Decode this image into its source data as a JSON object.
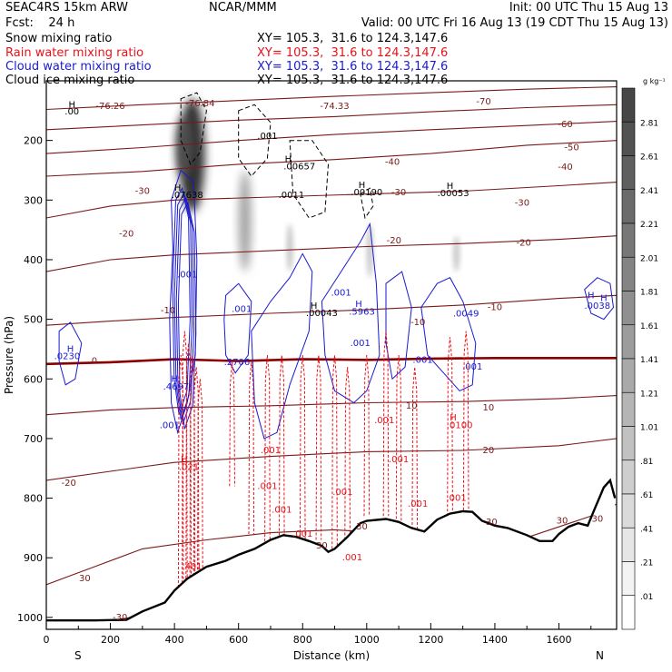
{
  "header": {
    "line1_left": "SEAC4RS 15km ARW",
    "line1_center": "NCAR/MMM",
    "line1_right": "Init: 00 UTC Thu 15 Aug 13",
    "line2_left": "Fcst:    24 h",
    "line2_right": "Valid: 00 UTC Fri 16 Aug 13 (19 CDT Thu 15 Aug 13)",
    "fields": [
      {
        "name": "Snow mixing ratio",
        "xy": "XY= 105.3,  31.6 to 124.3,147.6",
        "color": "#000000"
      },
      {
        "name": "Rain water mixing ratio",
        "xy": "XY= 105.3,  31.6 to 124.3,147.6",
        "color": "#e8121a"
      },
      {
        "name": "Cloud water mixing ratio",
        "xy": "XY= 105.3,  31.6 to 124.3,147.6",
        "color": "#1a1ad0"
      },
      {
        "name": "Cloud ice mixing ratio",
        "xy": "XY= 105.3,  31.6 to 124.3,147.6",
        "color": "#000000"
      }
    ]
  },
  "chart_data": {
    "type": "cross-section",
    "xlabel": "Distance (km)",
    "ylabel": "Pressure (hPa)",
    "xlim": [
      0,
      1780
    ],
    "ylim": [
      1020,
      100
    ],
    "x_ticks": [
      "0",
      "200",
      "400",
      "600",
      "800",
      "1000",
      "1200",
      "1400",
      "1600"
    ],
    "y_ticks": [
      "200",
      "300",
      "400",
      "500",
      "600",
      "700",
      "800",
      "900",
      "1000"
    ],
    "end_labels": {
      "left": "S",
      "right": "N"
    },
    "colorbar": {
      "unit": "g kg⁻¹",
      "labels": [
        "2.81",
        "2.61",
        "2.41",
        "2.21",
        "2.01",
        "1.81",
        "1.61",
        "1.41",
        "1.21",
        "1.01",
        ".81",
        ".61",
        ".41",
        ".21",
        ".01"
      ]
    },
    "temperature_contours": {
      "color": "#7a1a1a",
      "zero_color": "#8a0000",
      "levels": [
        {
          "value": 30,
          "points": [
            [
              0,
              1008
            ],
            [
              200,
              1005
            ],
            [
              400,
              990
            ],
            [
              700,
              960
            ]
          ]
        },
        {
          "value": 30,
          "points": [
            [
              0,
              945
            ],
            [
              150,
              915
            ],
            [
              300,
              885
            ],
            [
              500,
              870
            ],
            [
              700,
              858
            ],
            [
              900,
              853
            ],
            [
              1100,
              860
            ],
            [
              1300,
              872
            ],
            [
              1500,
              866
            ],
            [
              1700,
              830
            ],
            [
              1780,
              810
            ]
          ]
        },
        {
          "value": 20,
          "points": [
            [
              0,
              770
            ],
            [
              200,
              755
            ],
            [
              400,
              740
            ],
            [
              700,
              730
            ],
            [
              1000,
              722
            ],
            [
              1300,
              720
            ],
            [
              1600,
              712
            ],
            [
              1780,
              700
            ]
          ]
        },
        {
          "value": 10,
          "points": [
            [
              0,
              660
            ],
            [
              200,
              652
            ],
            [
              400,
              648
            ],
            [
              700,
              645
            ],
            [
              1000,
              640
            ],
            [
              1300,
              638
            ],
            [
              1600,
              633
            ],
            [
              1780,
              628
            ]
          ]
        },
        {
          "value": 0,
          "points": [
            [
              0,
              575
            ],
            [
              200,
              572
            ],
            [
              400,
              567
            ],
            [
              600,
              570
            ],
            [
              800,
              567
            ],
            [
              1000,
              568
            ],
            [
              1200,
              566
            ],
            [
              1400,
              565
            ],
            [
              1600,
              565
            ],
            [
              1780,
              565
            ]
          ]
        },
        {
          "value": -10,
          "points": [
            [
              0,
              510
            ],
            [
              200,
              503
            ],
            [
              400,
              497
            ],
            [
              700,
              490
            ],
            [
              1000,
              484
            ],
            [
              1300,
              476
            ],
            [
              1600,
              465
            ],
            [
              1780,
              460
            ]
          ]
        },
        {
          "value": -20,
          "points": [
            [
              0,
              420
            ],
            [
              200,
              400
            ],
            [
              400,
              392
            ],
            [
              700,
              385
            ],
            [
              1000,
              378
            ],
            [
              1300,
              373
            ],
            [
              1600,
              366
            ],
            [
              1780,
              360
            ]
          ]
        },
        {
          "value": -30,
          "points": [
            [
              0,
              330
            ],
            [
              200,
              310
            ],
            [
              400,
              300
            ],
            [
              700,
              295
            ],
            [
              1000,
              290
            ],
            [
              1300,
              285
            ],
            [
              1600,
              276
            ],
            [
              1780,
              270
            ]
          ]
        },
        {
          "value": -40,
          "points": [
            [
              0,
              260
            ],
            [
              300,
              252
            ],
            [
              600,
              240
            ],
            [
              900,
              232
            ],
            [
              1200,
              222
            ],
            [
              1500,
              208
            ],
            [
              1780,
              200
            ]
          ]
        },
        {
          "value": -50,
          "points": [
            [
              0,
              222
            ],
            [
              300,
              212
            ],
            [
              600,
              200
            ],
            [
              900,
              190
            ],
            [
              1200,
              182
            ],
            [
              1500,
              175
            ],
            [
              1780,
              168
            ]
          ]
        },
        {
          "value": -60,
          "points": [
            [
              0,
              182
            ],
            [
              300,
              174
            ],
            [
              600,
              166
            ],
            [
              900,
              160
            ],
            [
              1200,
              152
            ],
            [
              1500,
              145
            ],
            [
              1780,
              140
            ]
          ]
        },
        {
          "value": -70,
          "points": [
            [
              0,
              148
            ],
            [
              300,
              140
            ],
            [
              600,
              133
            ],
            [
              900,
              126
            ],
            [
              1200,
              120
            ],
            [
              1500,
              114
            ],
            [
              1780,
              110
            ]
          ]
        }
      ],
      "labels": [
        {
          "text": "-30",
          "x": 230,
          "y": 1000
        },
        {
          "text": "30",
          "x": 120,
          "y": 935
        },
        {
          "text": "30",
          "x": 985,
          "y": 848
        },
        {
          "text": "30",
          "x": 1390,
          "y": 840
        },
        {
          "text": "30",
          "x": 1610,
          "y": 838
        },
        {
          "text": "30",
          "x": 1720,
          "y": 835
        },
        {
          "text": "30",
          "x": 860,
          "y": 880
        },
        {
          "text": "-20",
          "x": 70,
          "y": 775
        },
        {
          "text": "20",
          "x": 1380,
          "y": 720
        },
        {
          "text": "10",
          "x": 1140,
          "y": 645
        },
        {
          "text": "10",
          "x": 1380,
          "y": 648
        },
        {
          "text": "0",
          "x": 150,
          "y": 570
        },
        {
          "text": "-10",
          "x": 380,
          "y": 485
        },
        {
          "text": "-10",
          "x": 1160,
          "y": 505
        },
        {
          "text": "-10",
          "x": 1400,
          "y": 480
        },
        {
          "text": "-20",
          "x": 250,
          "y": 357
        },
        {
          "text": "-20",
          "x": 1085,
          "y": 368
        },
        {
          "text": "-20",
          "x": 1490,
          "y": 372
        },
        {
          "text": "-30",
          "x": 300,
          "y": 285
        },
        {
          "text": "-30",
          "x": 1100,
          "y": 287
        },
        {
          "text": "-30",
          "x": 1485,
          "y": 305
        },
        {
          "text": "-40",
          "x": 1080,
          "y": 236
        },
        {
          "text": "-40",
          "x": 1620,
          "y": 245
        },
        {
          "text": "-50",
          "x": 1640,
          "y": 212
        },
        {
          "text": "-60",
          "x": 1620,
          "y": 173
        },
        {
          "text": "-70",
          "x": 1365,
          "y": 135
        },
        {
          "text": "-76.26",
          "x": 200,
          "y": 143
        },
        {
          "text": "-76.84",
          "x": 480,
          "y": 138
        },
        {
          "text": "-74.33",
          "x": 900,
          "y": 143
        }
      ]
    },
    "terrain": {
      "points": [
        [
          0,
          1005
        ],
        [
          150,
          1005
        ],
        [
          250,
          1004
        ],
        [
          300,
          990
        ],
        [
          370,
          975
        ],
        [
          400,
          955
        ],
        [
          440,
          935
        ],
        [
          500,
          915
        ],
        [
          560,
          905
        ],
        [
          600,
          895
        ],
        [
          650,
          885
        ],
        [
          700,
          870
        ],
        [
          740,
          862
        ],
        [
          780,
          865
        ],
        [
          820,
          872
        ],
        [
          860,
          880
        ],
        [
          880,
          890
        ],
        [
          900,
          885
        ],
        [
          940,
          865
        ],
        [
          980,
          842
        ],
        [
          1000,
          838
        ],
        [
          1060,
          835
        ],
        [
          1100,
          840
        ],
        [
          1140,
          850
        ],
        [
          1180,
          856
        ],
        [
          1220,
          836
        ],
        [
          1260,
          826
        ],
        [
          1300,
          822
        ],
        [
          1330,
          823
        ],
        [
          1360,
          838
        ],
        [
          1400,
          846
        ],
        [
          1440,
          850
        ],
        [
          1500,
          862
        ],
        [
          1540,
          872
        ],
        [
          1580,
          872
        ],
        [
          1600,
          860
        ],
        [
          1630,
          848
        ],
        [
          1660,
          842
        ],
        [
          1690,
          846
        ],
        [
          1710,
          820
        ],
        [
          1740,
          782
        ],
        [
          1760,
          770
        ],
        [
          1775,
          800
        ]
      ]
    },
    "snow_shading": [
      {
        "x": 455,
        "p_top": 130,
        "p_bot": 320,
        "width_km": 80,
        "peak": 2.6
      },
      {
        "x": 430,
        "p_top": 160,
        "p_bot": 260,
        "width_km": 50,
        "peak": 2.2
      },
      {
        "x": 620,
        "p_top": 250,
        "p_bot": 420,
        "width_km": 40,
        "peak": 1.0
      },
      {
        "x": 760,
        "p_top": 340,
        "p_bot": 420,
        "width_km": 20,
        "peak": 0.5
      },
      {
        "x": 1010,
        "p_top": 340,
        "p_bot": 430,
        "width_km": 20,
        "peak": 0.5
      },
      {
        "x": 1280,
        "p_top": 360,
        "p_bot": 420,
        "width_km": 20,
        "peak": 0.5
      }
    ],
    "labels": [
      {
        "text": "H",
        "x": 80,
        "y": 140,
        "color": "#000000"
      },
      {
        "text": ".00",
        "x": 80,
        "y": 152,
        "color": "#000000"
      },
      {
        "text": "H",
        "x": 410,
        "y": 280,
        "color": "#000000"
      },
      {
        "text": ".07638",
        "x": 440,
        "y": 292,
        "color": "#000000"
      },
      {
        "text": ".001",
        "x": 690,
        "y": 193,
        "color": "#000000"
      },
      {
        "text": "H",
        "x": 755,
        "y": 232,
        "color": "#000000"
      },
      {
        "text": ".00657",
        "x": 790,
        "y": 244,
        "color": "#000000"
      },
      {
        "text": ".0011",
        "x": 765,
        "y": 292,
        "color": "#000000"
      },
      {
        "text": "H",
        "x": 985,
        "y": 275,
        "color": "#000000"
      },
      {
        "text": ".00190",
        "x": 1000,
        "y": 287,
        "color": "#000000"
      },
      {
        "text": "H",
        "x": 1260,
        "y": 277,
        "color": "#000000"
      },
      {
        "text": ".00053",
        "x": 1270,
        "y": 289,
        "color": "#000000"
      },
      {
        "text": "H",
        "x": 835,
        "y": 478,
        "color": "#000000"
      },
      {
        "text": ".00043",
        "x": 860,
        "y": 490,
        "color": "#000000"
      },
      {
        "text": "H",
        "x": 75,
        "y": 550,
        "color": "#1a1ad0"
      },
      {
        "text": ".0230",
        "x": 65,
        "y": 562,
        "color": "#1a1ad0"
      },
      {
        "text": ".001",
        "x": 440,
        "y": 425,
        "color": "#1a1ad0"
      },
      {
        "text": ".001",
        "x": 610,
        "y": 483,
        "color": "#1a1ad0"
      },
      {
        "text": ".2706",
        "x": 595,
        "y": 572,
        "color": "#1a1ad0"
      },
      {
        "text": ".001",
        "x": 920,
        "y": 456,
        "color": "#1a1ad0"
      },
      {
        "text": "H",
        "x": 975,
        "y": 475,
        "color": "#1a1ad0"
      },
      {
        "text": ".5963",
        "x": 985,
        "y": 488,
        "color": "#1a1ad0"
      },
      {
        "text": ".001",
        "x": 980,
        "y": 540,
        "color": "#1a1ad0"
      },
      {
        "text": ".001",
        "x": 1175,
        "y": 568,
        "color": "#1a1ad0"
      },
      {
        "text": ".0049",
        "x": 1310,
        "y": 491,
        "color": "#1a1ad0"
      },
      {
        "text": ".001",
        "x": 1330,
        "y": 580,
        "color": "#1a1ad0"
      },
      {
        "text": "H",
        "x": 400,
        "y": 600,
        "color": "#1a1ad0"
      },
      {
        "text": ".4697",
        "x": 405,
        "y": 613,
        "color": "#1a1ad0"
      },
      {
        "text": ".001",
        "x": 385,
        "y": 678,
        "color": "#1a1ad0"
      },
      {
        "text": "H",
        "x": 1740,
        "y": 465,
        "color": "#1a1ad0"
      },
      {
        "text": ".0038",
        "x": 1720,
        "y": 478,
        "color": "#1a1ad0"
      },
      {
        "text": "H",
        "x": 1700,
        "y": 460,
        "color": "#1a1ad0"
      },
      {
        "text": ".001",
        "x": 700,
        "y": 720,
        "color": "#e8121a"
      },
      {
        "text": ".001",
        "x": 690,
        "y": 780,
        "color": "#e8121a"
      },
      {
        "text": ".001",
        "x": 735,
        "y": 820,
        "color": "#e8121a"
      },
      {
        "text": ".001",
        "x": 800,
        "y": 860,
        "color": "#e8121a"
      },
      {
        "text": ".001",
        "x": 925,
        "y": 790,
        "color": "#e8121a"
      },
      {
        "text": ".001",
        "x": 955,
        "y": 900,
        "color": "#e8121a"
      },
      {
        "text": ".001",
        "x": 1055,
        "y": 670,
        "color": "#e8121a"
      },
      {
        "text": ".001",
        "x": 1100,
        "y": 735,
        "color": "#e8121a"
      },
      {
        "text": ".001",
        "x": 1160,
        "y": 810,
        "color": "#e8121a"
      },
      {
        "text": ".001",
        "x": 1280,
        "y": 800,
        "color": "#e8121a"
      },
      {
        "text": "H",
        "x": 1270,
        "y": 665,
        "color": "#e8121a"
      },
      {
        "text": ".0100",
        "x": 1290,
        "y": 678,
        "color": "#e8121a"
      },
      {
        "text": "H",
        "x": 430,
        "y": 735,
        "color": "#e8121a"
      },
      {
        "text": ".021",
        "x": 445,
        "y": 748,
        "color": "#e8121a"
      },
      {
        "text": ".401",
        "x": 455,
        "y": 915,
        "color": "#e8121a"
      }
    ]
  }
}
